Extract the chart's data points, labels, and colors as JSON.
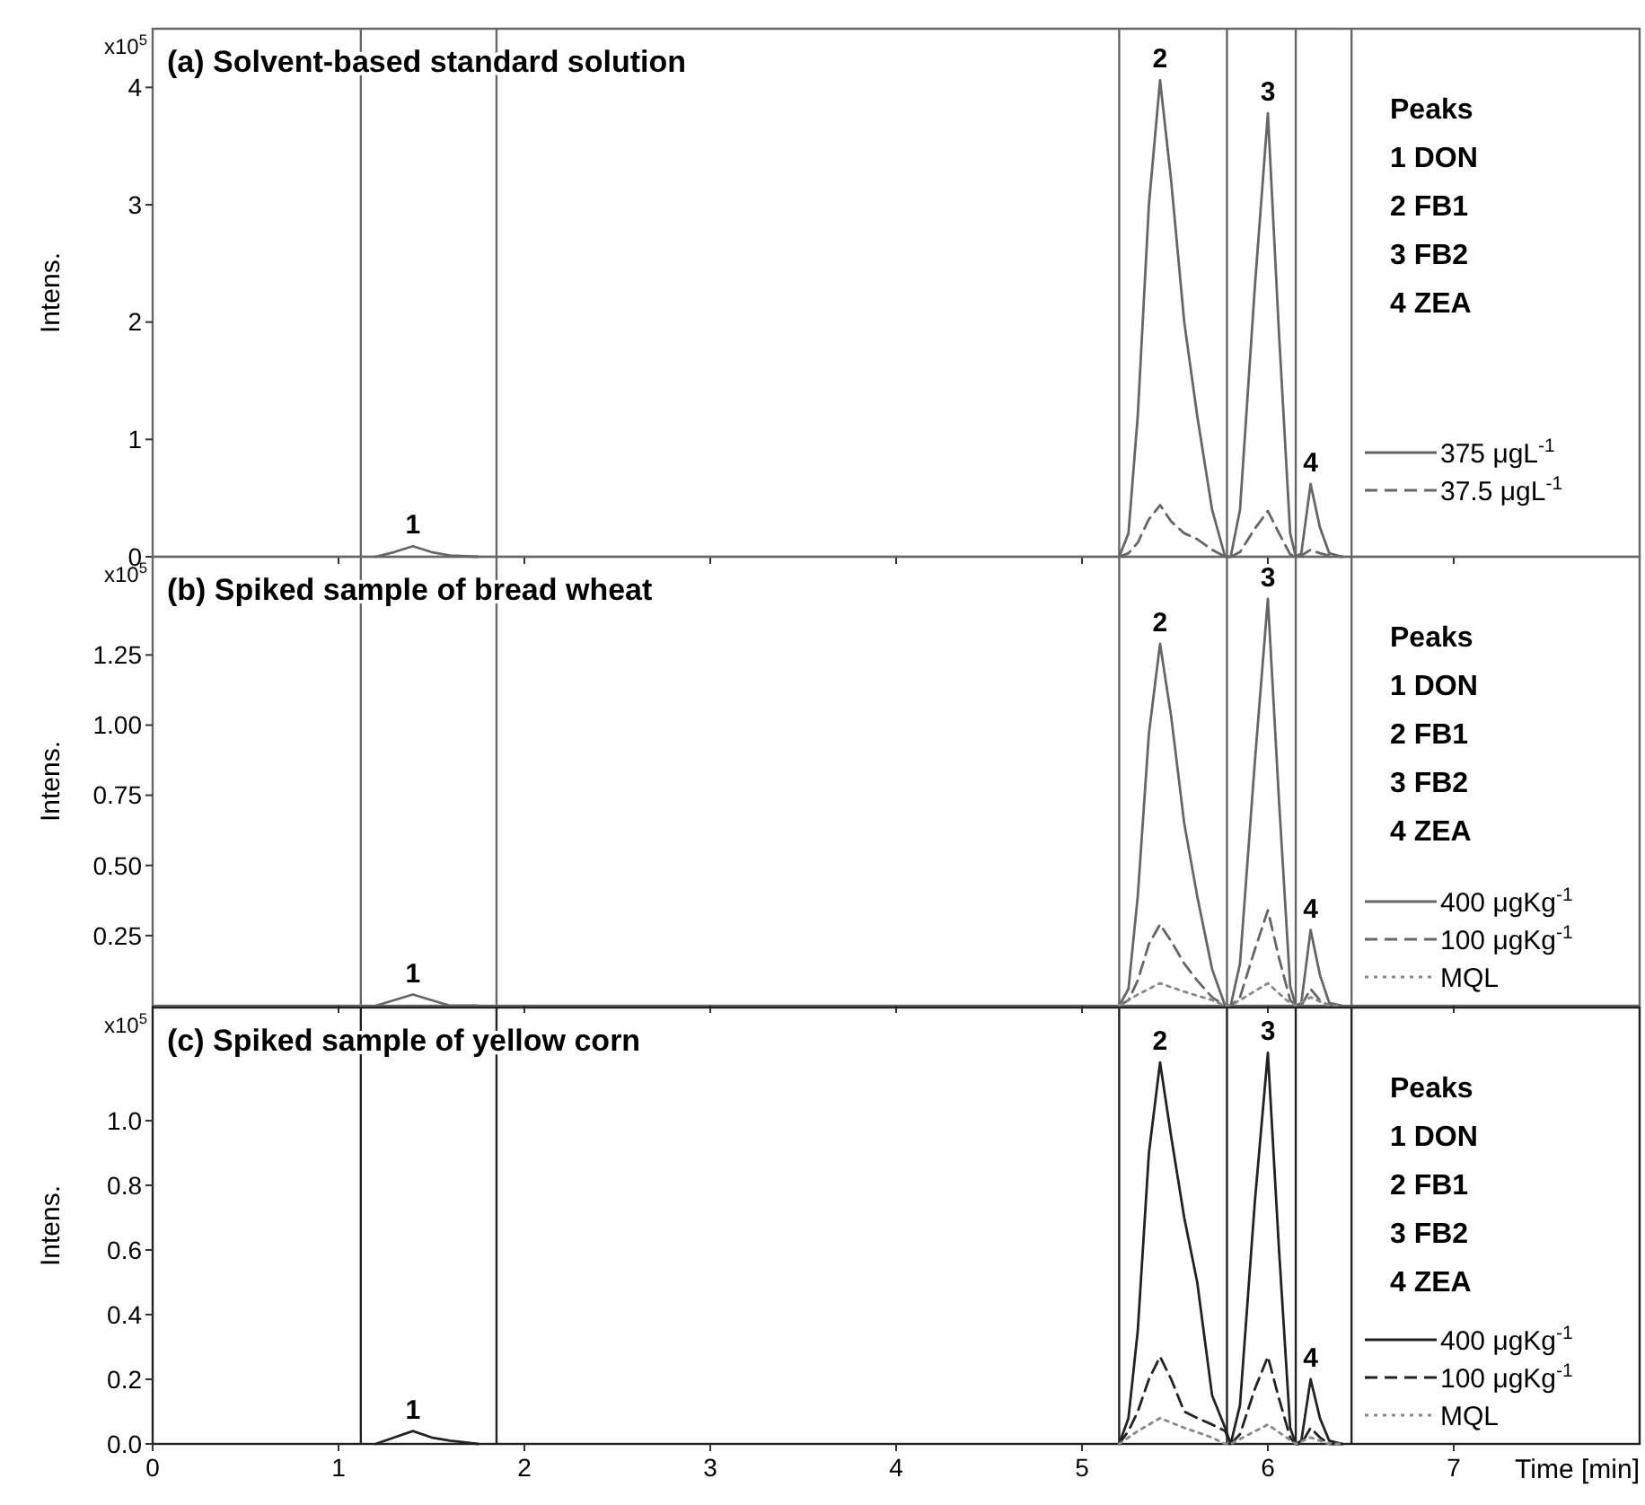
{
  "chart_data": [
    {
      "type": "line",
      "title": "(a) Solvent-based standard solution",
      "ylabel": "Intens.",
      "xlim": [
        0,
        8
      ],
      "xticks": [
        0,
        1,
        2,
        3,
        4,
        5,
        6,
        7
      ],
      "ylim": [
        0,
        4.5
      ],
      "yticks": [
        0,
        1,
        2,
        3,
        4
      ],
      "tick_labels": "y",
      "legend": "bottom right",
      "marker": "none",
      "grid": false,
      "annotations": [
        "x10$^{5}$",
        "Peaks",
        "1 DON",
        "2 FB1",
        "3 FB2",
        "4 ZEA",
        {
          "text": "1",
          "x": 1.4,
          "y": 0.09
        },
        {
          "text": "2",
          "x": 5.42,
          "y": 4.06
        },
        {
          "text": "3",
          "x": 6.0,
          "y": 3.78
        },
        {
          "text": "4",
          "x": 6.23,
          "y": 0.62
        }
      ],
      "ref_lines": [
        {
          "axis": "x",
          "value": 1.12,
          "color": "#666666"
        },
        {
          "axis": "x",
          "value": 1.85,
          "color": "#666666"
        },
        {
          "axis": "x",
          "value": 5.2,
          "color": "#666666"
        },
        {
          "axis": "x",
          "value": 5.78,
          "color": "#666666"
        },
        {
          "axis": "x",
          "value": 6.15,
          "color": "#666666"
        },
        {
          "axis": "x",
          "value": 6.45,
          "color": "#666666"
        }
      ],
      "series": [
        {
          "name": "375 μgL$^{-1}$",
          "color": "#666666",
          "line_style": "solid",
          "x": [
            1.2,
            1.3,
            1.4,
            1.5,
            1.6,
            1.75,
            3.5,
            5.2,
            5.25,
            5.3,
            5.36,
            5.42,
            5.48,
            5.55,
            5.62,
            5.7,
            5.77,
            5.8,
            5.85,
            5.93,
            6.0,
            6.06,
            6.12,
            6.15,
            6.18,
            6.23,
            6.28,
            6.33,
            6.4
          ],
          "values": [
            0,
            0.04,
            0.09,
            0.04,
            0.01,
            0,
            null,
            0,
            0.2,
            1.2,
            3.0,
            4.06,
            3.2,
            2.0,
            1.2,
            0.4,
            0,
            0,
            0.4,
            2.3,
            3.78,
            1.9,
            0.2,
            0,
            0.03,
            0.62,
            0.25,
            0.03,
            0
          ]
        },
        {
          "name": "37.5 μgL$^{-1}$",
          "color": "#666666",
          "line_style": "dashed",
          "x": [
            5.2,
            5.25,
            5.3,
            5.36,
            5.42,
            5.48,
            5.55,
            5.62,
            5.7,
            5.77,
            5.8,
            5.85,
            5.93,
            6.0,
            6.06,
            6.12,
            6.15,
            6.18,
            6.23,
            6.28,
            6.33,
            6.4
          ],
          "values": [
            0,
            0.03,
            0.12,
            0.32,
            0.44,
            0.3,
            0.2,
            0.15,
            0.06,
            0,
            0,
            0.04,
            0.24,
            0.39,
            0.2,
            0.02,
            0,
            0.01,
            0.06,
            0.03,
            0.01,
            0
          ]
        }
      ]
    },
    {
      "type": "line",
      "title": "(b) Spiked sample of bread wheat",
      "ylabel": "Intens.",
      "xlim": [
        0,
        8
      ],
      "xticks": [
        0,
        1,
        2,
        3,
        4,
        5,
        6,
        7
      ],
      "ylim": [
        0,
        1.6
      ],
      "yticks": [
        {
          "value": 0.25,
          "label": "0.25"
        },
        {
          "value": 0.5,
          "label": "0.50"
        },
        {
          "value": 0.75,
          "label": "0.75"
        },
        {
          "value": 1,
          "label": "1.00"
        },
        {
          "value": 1.25,
          "label": "1.25"
        }
      ],
      "tick_labels": "y",
      "legend": "bottom right",
      "marker": "none",
      "grid": false,
      "annotations": [
        "x10$^{5}$",
        "Peaks",
        "1 DON",
        "2 FB1",
        "3 FB2",
        "4 ZEA",
        {
          "text": "1",
          "x": 1.4,
          "y": 0.04
        },
        {
          "text": "2",
          "x": 5.42,
          "y": 1.29
        },
        {
          "text": "3",
          "x": 6.0,
          "y": 1.45
        },
        {
          "text": "4",
          "x": 6.23,
          "y": 0.27
        }
      ],
      "ref_lines": [
        {
          "axis": "x",
          "value": 1.12,
          "color": "#666666"
        },
        {
          "axis": "x",
          "value": 1.85,
          "color": "#666666"
        },
        {
          "axis": "x",
          "value": 5.2,
          "color": "#666666"
        },
        {
          "axis": "x",
          "value": 5.78,
          "color": "#666666"
        },
        {
          "axis": "x",
          "value": 6.15,
          "color": "#666666"
        },
        {
          "axis": "x",
          "value": 6.45,
          "color": "#666666"
        }
      ],
      "series": [
        {
          "name": "400 μgKg$^{-1}$",
          "color": "#666666",
          "line_style": "solid",
          "x": [
            1.2,
            1.3,
            1.4,
            1.5,
            1.6,
            1.75,
            3.5,
            5.2,
            5.25,
            5.3,
            5.36,
            5.42,
            5.48,
            5.55,
            5.62,
            5.7,
            5.77,
            5.8,
            5.85,
            5.93,
            6.0,
            6.06,
            6.12,
            6.15,
            6.18,
            6.23,
            6.28,
            6.33,
            6.4
          ],
          "values": [
            0,
            0.02,
            0.04,
            0.02,
            0,
            0,
            null,
            0,
            0.06,
            0.39,
            0.97,
            1.29,
            1.03,
            0.65,
            0.39,
            0.13,
            0,
            0,
            0.15,
            0.87,
            1.45,
            0.73,
            0.07,
            0,
            0.01,
            0.27,
            0.11,
            0.01,
            0
          ]
        },
        {
          "name": "100 μgKg$^{-1}$",
          "color": "#666666",
          "line_style": "dashed",
          "x": [
            5.2,
            5.25,
            5.3,
            5.36,
            5.42,
            5.48,
            5.55,
            5.62,
            5.7,
            5.77,
            5.8,
            5.85,
            5.93,
            6.0,
            6.06,
            6.12,
            6.15,
            6.18,
            6.23,
            6.28,
            6.33,
            6.4
          ],
          "values": [
            0,
            0.02,
            0.09,
            0.22,
            0.29,
            0.23,
            0.15,
            0.09,
            0.03,
            0,
            0,
            0.03,
            0.2,
            0.34,
            0.17,
            0.02,
            0,
            0,
            0.06,
            0.02,
            0,
            0
          ]
        },
        {
          "name": "MQL",
          "color": "#888888",
          "line_style": "dotted",
          "x": [
            5.2,
            5.3,
            5.42,
            5.55,
            5.7,
            5.77,
            5.8,
            5.9,
            6.0,
            6.1,
            6.15,
            6.23,
            6.33,
            6.4
          ],
          "values": [
            0,
            0.04,
            0.08,
            0.05,
            0.02,
            0,
            0,
            0.04,
            0.08,
            0.02,
            0,
            0.03,
            0,
            0
          ]
        }
      ]
    },
    {
      "type": "line",
      "title": "(c) Spiked sample of yellow corn",
      "ylabel": "Intens.",
      "xlabel": "Time [min]",
      "xlim": [
        0,
        8
      ],
      "xticks": [
        0,
        1,
        2,
        3,
        4,
        5,
        6,
        7
      ],
      "ylim": [
        0,
        1.35
      ],
      "yticks": [
        {
          "value": 0,
          "label": "0.0"
        },
        {
          "value": 0.2,
          "label": "0.2"
        },
        {
          "value": 0.4,
          "label": "0.4"
        },
        {
          "value": 0.6,
          "label": "0.6"
        },
        {
          "value": 0.8,
          "label": "0.8"
        },
        {
          "value": 1,
          "label": "1.0"
        }
      ],
      "legend": "bottom right",
      "marker": "none",
      "grid": false,
      "annotations": [
        "x10$^{5}$",
        "Peaks",
        "1 DON",
        "2 FB1",
        "3 FB2",
        "4 ZEA",
        {
          "text": "1",
          "x": 1.4,
          "y": 0.04
        },
        {
          "text": "2",
          "x": 5.42,
          "y": 1.18
        },
        {
          "text": "3",
          "x": 6.0,
          "y": 1.21
        },
        {
          "text": "4",
          "x": 6.23,
          "y": 0.2
        }
      ],
      "ref_lines": [
        {
          "axis": "x",
          "value": 1.12,
          "color": "#222222"
        },
        {
          "axis": "x",
          "value": 1.85,
          "color": "#222222"
        },
        {
          "axis": "x",
          "value": 5.2,
          "color": "#222222"
        },
        {
          "axis": "x",
          "value": 5.78,
          "color": "#222222"
        },
        {
          "axis": "x",
          "value": 6.15,
          "color": "#222222"
        },
        {
          "axis": "x",
          "value": 6.45,
          "color": "#222222"
        }
      ],
      "series": [
        {
          "name": "400 μgKg$^{-1}$",
          "color": "#222222",
          "line_style": "solid",
          "x": [
            1.2,
            1.3,
            1.4,
            1.5,
            1.6,
            1.75,
            3.5,
            5.2,
            5.25,
            5.3,
            5.36,
            5.42,
            5.48,
            5.55,
            5.62,
            5.7,
            5.77,
            5.8,
            5.85,
            5.93,
            6.0,
            6.06,
            6.12,
            6.15,
            6.18,
            6.23,
            6.28,
            6.33,
            6.4
          ],
          "values": [
            0,
            0.02,
            0.04,
            0.02,
            0.01,
            0,
            null,
            0,
            0.08,
            0.35,
            0.9,
            1.18,
            0.95,
            0.7,
            0.5,
            0.15,
            0.05,
            0,
            0.12,
            0.75,
            1.21,
            0.6,
            0.05,
            0,
            0.01,
            0.2,
            0.08,
            0.01,
            0
          ]
        },
        {
          "name": "100 μgKg$^{-1}$",
          "color": "#222222",
          "line_style": "dashed",
          "x": [
            5.2,
            5.25,
            5.3,
            5.36,
            5.42,
            5.48,
            5.55,
            5.62,
            5.7,
            5.77,
            5.8,
            5.85,
            5.93,
            6.0,
            6.06,
            6.12,
            6.15,
            6.18,
            6.23,
            6.28,
            6.33,
            6.4
          ],
          "values": [
            0,
            0.04,
            0.1,
            0.2,
            0.27,
            0.2,
            0.1,
            0.08,
            0.06,
            0.04,
            0,
            0.03,
            0.17,
            0.27,
            0.14,
            0.02,
            0,
            0,
            0.05,
            0.02,
            0,
            0
          ]
        },
        {
          "name": "MQL",
          "color": "#888888",
          "line_style": "dotted",
          "x": [
            5.2,
            5.3,
            5.42,
            5.55,
            5.7,
            5.77,
            5.8,
            5.9,
            6.0,
            6.1,
            6.15,
            6.23,
            6.33,
            6.4
          ],
          "values": [
            0,
            0.04,
            0.08,
            0.05,
            0.02,
            0,
            0,
            0.03,
            0.06,
            0.02,
            0,
            0.02,
            0,
            0
          ]
        }
      ]
    }
  ]
}
